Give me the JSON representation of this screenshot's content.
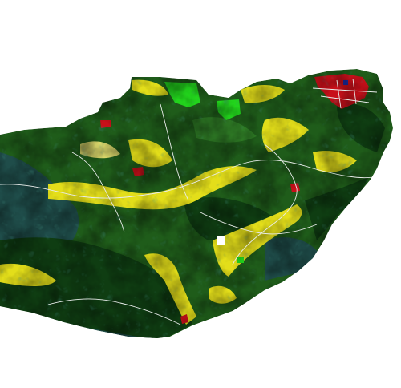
{
  "map": {
    "view": "3d-shaded-relief-land-cover",
    "colors": {
      "background": "#ffffff",
      "forest_dark": "#0f3d12",
      "forest": "#1f5c1a",
      "forest_light": "#2e7a25",
      "conifer_blue": "#1f4d4a",
      "grassland": "#e3de1a",
      "grassland_pale": "#d8d56a",
      "pasture": "#22d41c",
      "urban": "#c8101a",
      "roads": "#e8ecea",
      "water": "#1a2aa0"
    },
    "land_cover_classes": [
      "forest_dark",
      "forest",
      "conifer_blue",
      "grassland",
      "pasture",
      "urban",
      "water"
    ],
    "features": {
      "urban_area": "urban",
      "valley_floors": "grassland",
      "ridges": "forest_dark",
      "road_network": "roads"
    }
  }
}
